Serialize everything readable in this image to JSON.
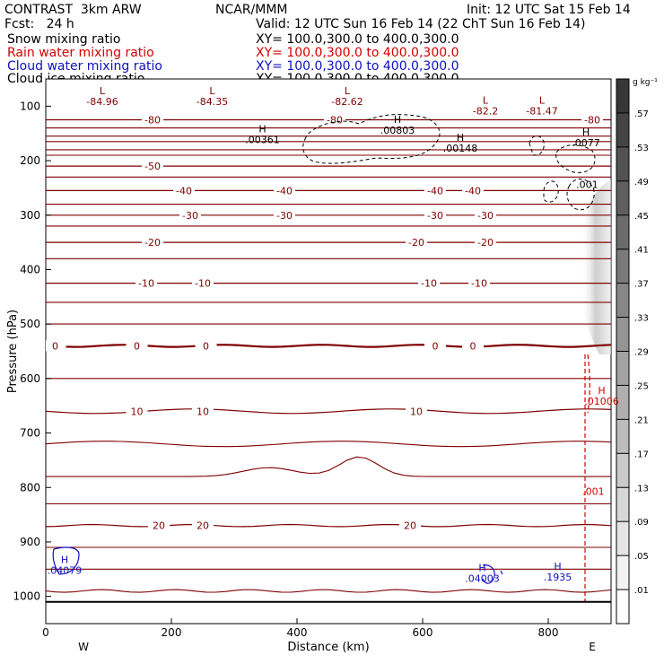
{
  "header": {
    "model": "CONTRAST  3km ARW",
    "org": "NCAR/MMM",
    "init": "Init: 12 UTC Sat 15 Feb 14",
    "fcst": "Fcst:   24 h",
    "valid": "Valid: 12 UTC Sun 16 Feb 14 (22 ChT Sun 16 Feb 14)",
    "fields": [
      {
        "label": "Snow mixing ratio",
        "xy": "XY= 100.0,300.0 to 400.0,300.0",
        "color": "#000000"
      },
      {
        "label": "Rain water mixing ratio",
        "xy": "XY= 100.0,300.0 to 400.0,300.0",
        "color": "#d40000"
      },
      {
        "label": "Cloud water mixing ratio",
        "xy": "XY= 100.0,300.0 to 400.0,300.0",
        "color": "#1010c0"
      },
      {
        "label": "Cloud ice mixing ratio",
        "xy": "XY= 100.0,300.0 to 400.0,300.0",
        "color": "#000000"
      }
    ]
  },
  "chart_data": {
    "type": "contour",
    "xlabel": "Distance (km)",
    "ylabel": "Pressure (hPa)",
    "xlim": [
      0,
      900
    ],
    "ylim": [
      1050,
      50
    ],
    "xticks": [
      0,
      200,
      400,
      600,
      800
    ],
    "yticks": [
      100,
      200,
      300,
      400,
      500,
      600,
      700,
      800,
      900,
      1000
    ],
    "x_end_labels": {
      "left": "W",
      "right": "E"
    },
    "colorbar": {
      "unit": "g kg⁻¹",
      "ticks": [
        ".01",
        ".05",
        ".09",
        ".13",
        ".17",
        ".21",
        ".25",
        ".29",
        ".33",
        ".37",
        ".41",
        ".45",
        ".49",
        ".53",
        ".57"
      ]
    },
    "temperature_contours": {
      "color": "#800000",
      "levels": [
        {
          "p": 125,
          "label": "-80",
          "label_x": [
            170,
            460,
            870
          ]
        },
        {
          "p": 210,
          "label": "-50",
          "label_x": [
            170
          ]
        },
        {
          "p": 255,
          "label": "-40",
          "label_x": [
            220,
            380,
            620,
            680
          ]
        },
        {
          "p": 300,
          "label": "-30",
          "label_x": [
            230,
            380,
            620,
            700
          ]
        },
        {
          "p": 350,
          "label": "-20",
          "label_x": [
            170,
            590,
            700
          ]
        },
        {
          "p": 425,
          "label": "-10",
          "label_x": [
            160,
            250,
            610,
            690
          ]
        },
        {
          "p": 540,
          "label": "0",
          "label_x": [
            15,
            145,
            255,
            620,
            680
          ]
        },
        {
          "p": 660,
          "label": "10",
          "label_x": [
            145,
            250,
            590
          ]
        },
        {
          "p": 870,
          "label": "20",
          "label_x": [
            180,
            250,
            580
          ]
        }
      ]
    },
    "extrema_labels": [
      {
        "kind": "L",
        "x": 90,
        "p": 85,
        "value": "-84.96"
      },
      {
        "kind": "L",
        "x": 265,
        "p": 85,
        "value": "-84.35"
      },
      {
        "kind": "L",
        "x": 480,
        "p": 85,
        "value": "-82.62"
      },
      {
        "kind": "L",
        "x": 700,
        "p": 102,
        "value": "-82.2"
      },
      {
        "kind": "L",
        "x": 790,
        "p": 102,
        "value": "-81.47"
      },
      {
        "kind": "H",
        "x": 345,
        "p": 155,
        "value": ".00361",
        "color": "#000000"
      },
      {
        "kind": "H",
        "x": 560,
        "p": 137,
        "value": ".00803",
        "color": "#000000"
      },
      {
        "kind": "H",
        "x": 660,
        "p": 170,
        "value": ".00148",
        "color": "#000000"
      },
      {
        "kind": "H",
        "x": 860,
        "p": 160,
        "value": ".0077",
        "color": "#000000"
      },
      {
        "kind": "",
        "x": 862,
        "p": 237,
        "value": ".001",
        "color": "#000000"
      },
      {
        "kind": "H",
        "x": 885,
        "p": 635,
        "value": ".01006",
        "color": "#d40000"
      },
      {
        "kind": "",
        "x": 872,
        "p": 800,
        "value": ".001",
        "color": "#d40000"
      },
      {
        "kind": "H",
        "x": 30,
        "p": 945,
        "value": ".04079",
        "color": "#1010c0"
      },
      {
        "kind": "H",
        "x": 695,
        "p": 960,
        "value": ".04003",
        "color": "#1010c0"
      },
      {
        "kind": "H",
        "x": 815,
        "p": 958,
        "value": ".1935",
        "color": "#1010c0"
      }
    ]
  }
}
